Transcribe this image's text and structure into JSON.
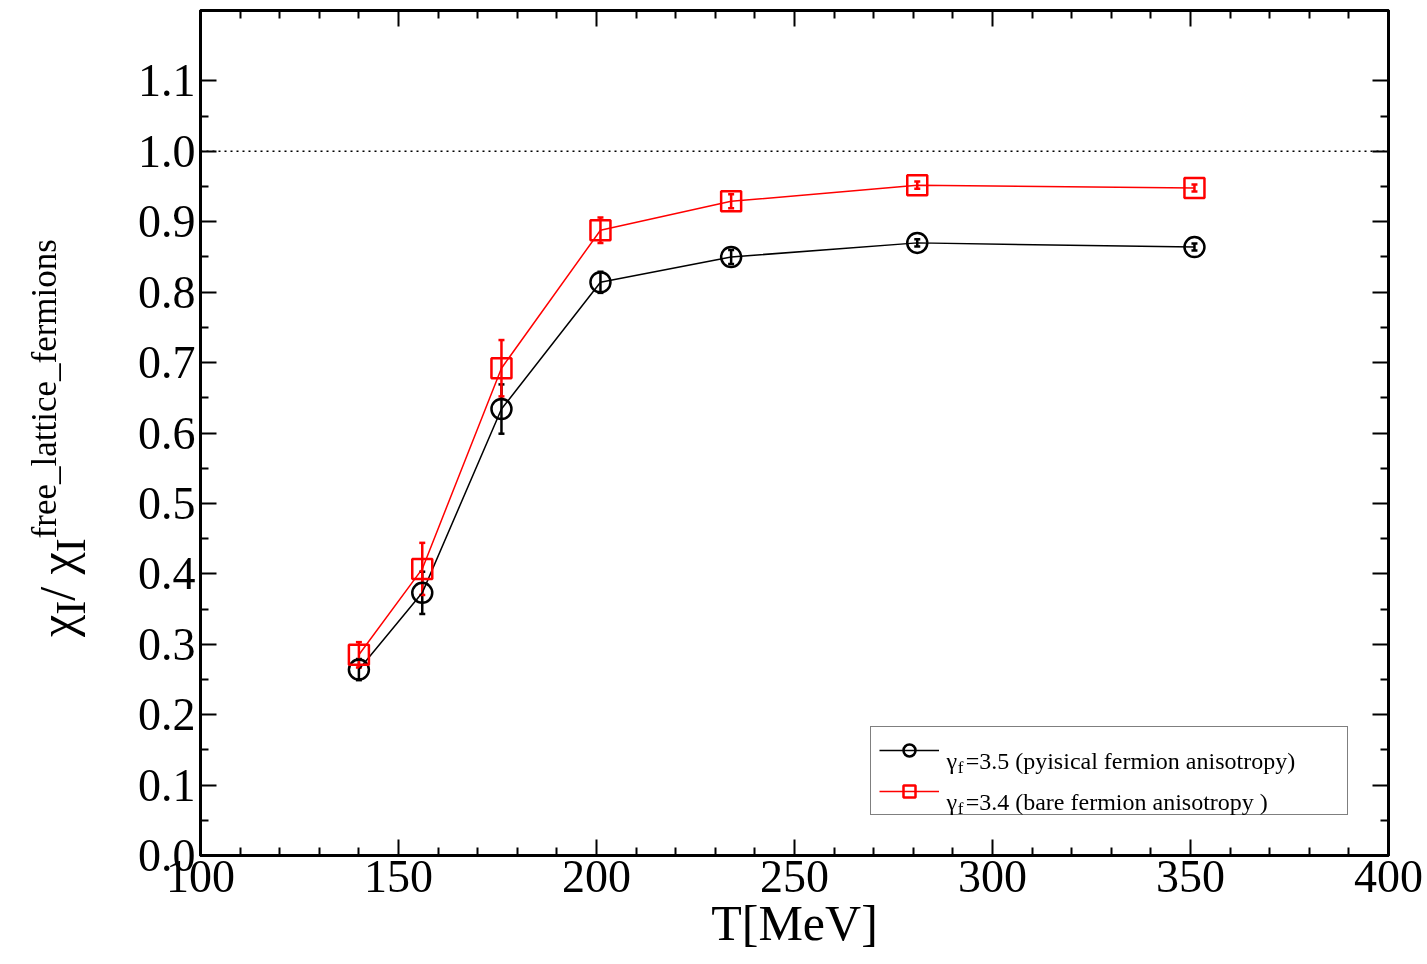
{
  "chart_data": {
    "type": "line",
    "xlabel": "T[MeV]",
    "ylabel": "χ$_{I}$/ χ$_{I}$$^{free_lattice_fermions}$",
    "xlim": [
      100,
      400
    ],
    "xticks": [
      100,
      150,
      200,
      250,
      300,
      350,
      400
    ],
    "ylim": [
      0.0,
      1.2
    ],
    "yticks": [
      {
        "value": 0.0,
        "label": "0.0"
      },
      0.1,
      0.2,
      0.3,
      0.4,
      0.5,
      0.6,
      0.7,
      0.8,
      0.9,
      {
        "value": 1.0,
        "label": "1.0"
      },
      1.1
    ],
    "x": [
      140,
      156,
      176,
      201,
      234,
      281,
      351
    ],
    "series": [
      {
        "name": "γ$_{f}$=3.5 (pyisical fermion anisotropy)",
        "color": "#000000",
        "marker": "circle",
        "values": [
          0.264,
          0.373,
          0.634,
          0.814,
          0.85,
          0.87,
          0.864
        ],
        "errors": [
          0.015,
          0.03,
          0.035,
          0.015,
          0.01,
          0.005,
          0.005
        ]
      },
      {
        "name": "γ$_{f}$=3.4 (bare fermion anisotropy )",
        "color": "#ff0000",
        "marker": "square",
        "values": [
          0.285,
          0.407,
          0.692,
          0.888,
          0.929,
          0.952,
          0.948
        ],
        "errors": [
          0.018,
          0.037,
          0.04,
          0.018,
          0.01,
          0.005,
          0.005
        ]
      }
    ],
    "ref_lines": [
      {
        "axis": "y",
        "value": 1.0,
        "label": null,
        "line_style": "dotted",
        "color": "#000000"
      }
    ],
    "legend": "bottom right",
    "line_style": "solid"
  }
}
